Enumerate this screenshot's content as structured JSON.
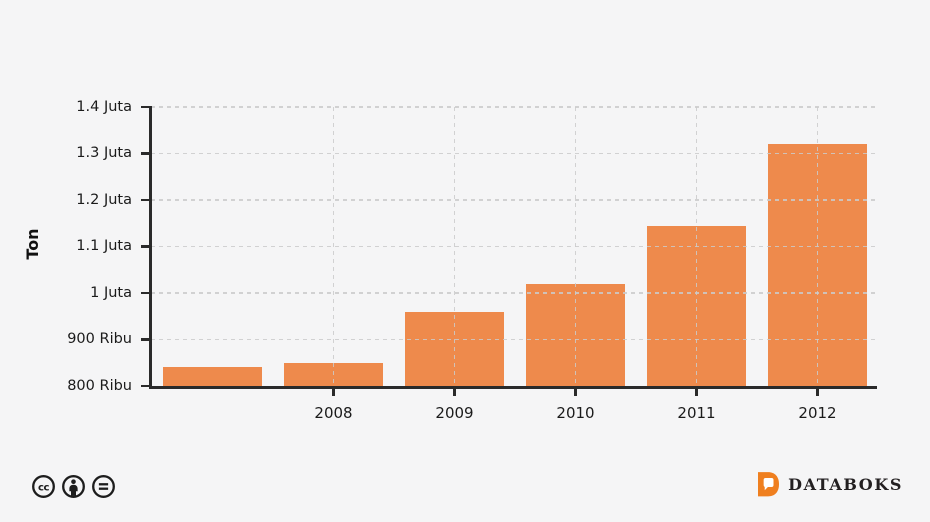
{
  "chart_data": {
    "type": "bar",
    "title": "",
    "ylabel": "Ton",
    "xlabel": "",
    "categories": [
      "",
      "2008",
      "2009",
      "2010",
      "2011",
      "2012"
    ],
    "values": [
      840,
      850,
      960,
      1020,
      1145,
      1320
    ],
    "value_unit": "Ribu (thousand) Ton",
    "ylim": [
      800,
      1400
    ],
    "ytick_values": [
      800,
      900,
      1000,
      1100,
      1200,
      1300,
      1400
    ],
    "ytick_labels": [
      "800 Ribu",
      "900 Ribu",
      "1 Juta",
      "1.1 Juta",
      "1.2 Juta",
      "1.3 Juta",
      "1.4 Juta"
    ],
    "grid": true,
    "legend": false,
    "bar_color": "#ee8a4c"
  },
  "colors": {
    "background": "#f5f5f6",
    "bar": "#ee8a4c",
    "axis": "#2a2a2a",
    "gridline": "#cbcbcb",
    "tick_text": "#1b1b1b",
    "logo_orange": "#ef7f1f",
    "logo_text": "#232021"
  },
  "footer": {
    "license_icons": [
      "cc-icon",
      "attribution-icon",
      "no-derivatives-icon"
    ],
    "brand": "DATABOKS"
  }
}
